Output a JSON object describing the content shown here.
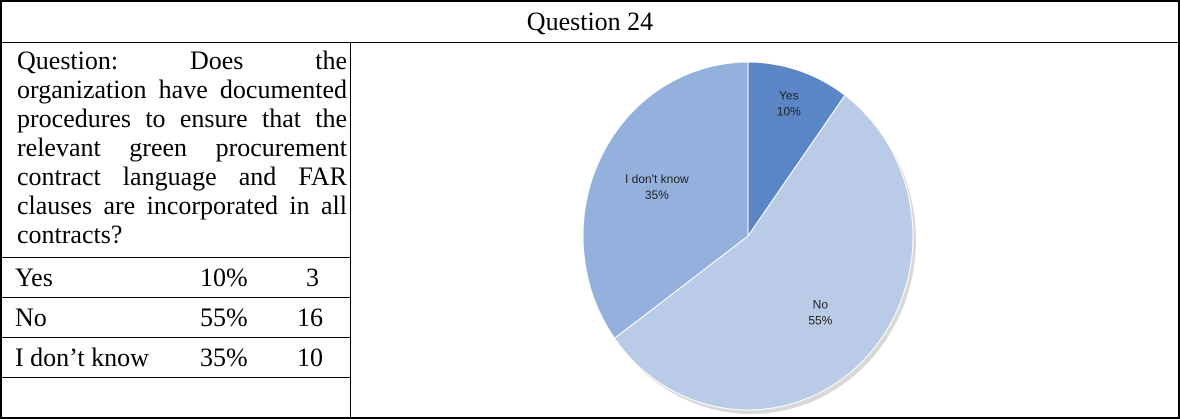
{
  "header": {
    "title": "Question 24"
  },
  "question": {
    "text": "Question: Does the organization have documented procedures to ensure that the relevant green procurement contract language and FAR clauses are incorporated in all contracts?"
  },
  "responses": [
    {
      "label": "Yes",
      "percent": "10%",
      "count": "3"
    },
    {
      "label": "No",
      "percent": "55%",
      "count": "16"
    },
    {
      "label": "I don’t know",
      "percent": "35%",
      "count": "10"
    }
  ],
  "chart_data": {
    "type": "pie",
    "slices": [
      {
        "label": "Yes",
        "value": 10,
        "value_label": "10%",
        "color": "#5b86c5"
      },
      {
        "label": "No",
        "value": 55,
        "value_label": "55%",
        "color": "#b9cbe6"
      },
      {
        "label": "I don't know",
        "value": 35,
        "value_label": "35%",
        "color": "#93b1dc"
      }
    ],
    "start_angle_deg": 0,
    "direction": "clockwise",
    "labels_inside": true
  }
}
